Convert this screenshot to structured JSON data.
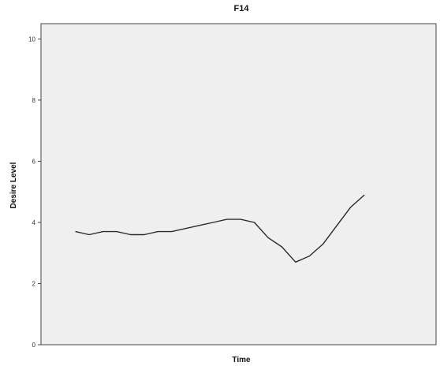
{
  "chart_data": {
    "type": "line",
    "title": "F14",
    "xlabel": "Time",
    "ylabel": "Desire Level",
    "ylim": [
      0,
      10.5
    ],
    "yticks": [
      0,
      2,
      4,
      6,
      8,
      10
    ],
    "x": [
      1,
      2,
      3,
      4,
      5,
      6,
      7,
      8,
      9,
      10,
      11,
      12,
      13,
      14,
      15,
      16,
      17,
      18,
      19,
      20,
      21,
      22,
      23
    ],
    "xlim": [
      -1.5,
      27.2
    ],
    "series": [
      {
        "values": [
          3.7,
          3.6,
          3.7,
          3.7,
          3.6,
          3.6,
          3.7,
          3.7,
          3.8,
          3.9,
          4.0,
          4.1,
          4.1,
          4.0,
          3.5,
          3.2,
          2.7,
          2.9,
          3.3,
          3.9,
          4.5,
          4.9,
          null
        ]
      }
    ],
    "grid": false,
    "legend": "none",
    "colors": {
      "plot_background": "#efefef",
      "line": "#2b2b2b",
      "axis": "#444444",
      "page_background": "#ffffff"
    }
  }
}
